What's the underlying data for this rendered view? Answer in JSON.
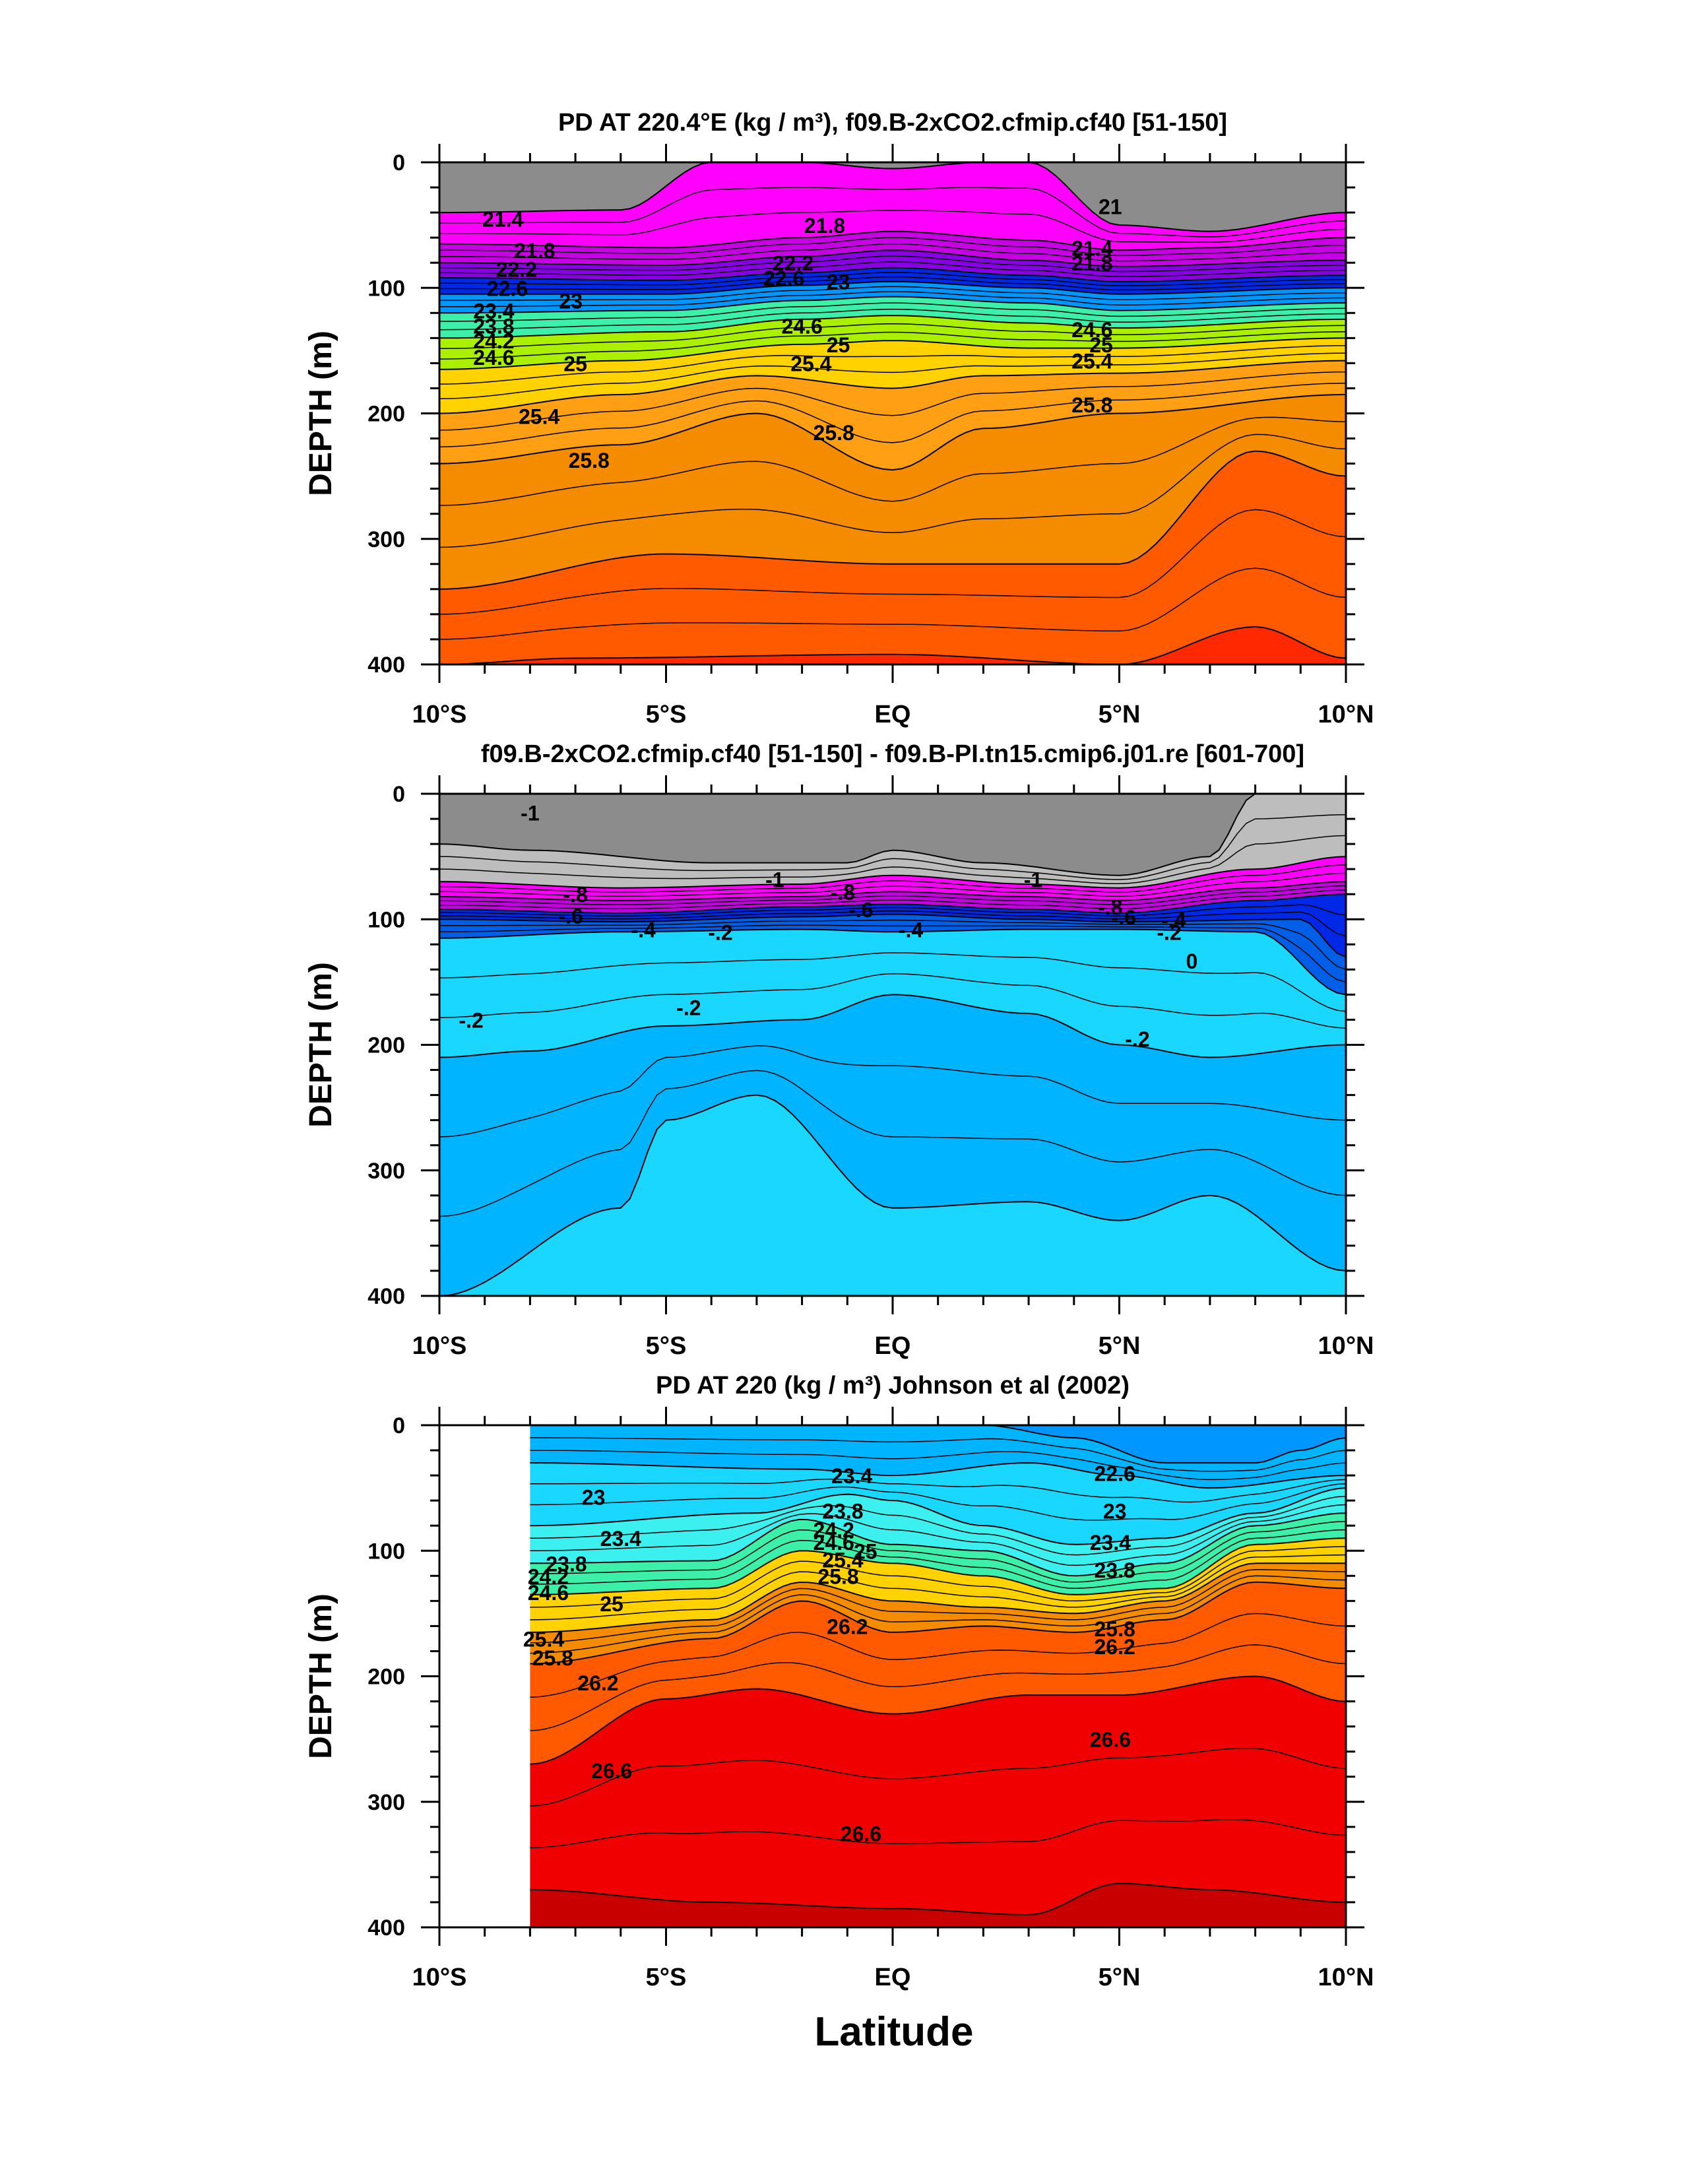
{
  "figure": {
    "xlabel": "Latitude"
  },
  "colors": {
    "ramp": [
      "#8c8c8c",
      "#bdbdbd",
      "#ff00ff",
      "#c800e6",
      "#8a00e6",
      "#2b00e6",
      "#0028e6",
      "#005fe6",
      "#0096ff",
      "#00b4ff",
      "#19d7ff",
      "#3cf0f0",
      "#3cf0aa",
      "#22e664",
      "#50f028",
      "#aaf000",
      "#f0f000",
      "#ffd200",
      "#ffa014",
      "#f58c00",
      "#ff5a00",
      "#ff2800",
      "#f00000",
      "#c80000",
      "#a00000"
    ]
  },
  "chart_data": [
    {
      "type": "contour",
      "title": "PD AT 220.4°E (kg / m³), f09.B-2xCO2.cfmip.cf40 [51-150]",
      "ylabel": "DEPTH (m)",
      "xlim": [
        -10,
        10
      ],
      "ylim": [
        400,
        0
      ],
      "xticks": [
        -10,
        -5,
        0,
        5,
        10
      ],
      "xticklabels": [
        "10°S",
        "5°S",
        "EQ",
        "5°N",
        "10°N"
      ],
      "yticks": [
        0,
        100,
        200,
        300,
        400
      ],
      "yticklabels": [
        "0",
        "100",
        "200",
        "300",
        "400"
      ],
      "levels": [
        21,
        21.4,
        21.8,
        22.2,
        22.6,
        23,
        23.4,
        23.8,
        24.2,
        24.6,
        25,
        25.4,
        25.8,
        26.2,
        26.6,
        27
      ],
      "contour_labels": [
        {
          "text": "21.4",
          "x": -8.6,
          "y": 45
        },
        {
          "text": "21.8",
          "x": -7.9,
          "y": 70
        },
        {
          "text": "22.2",
          "x": -8.3,
          "y": 85
        },
        {
          "text": "22.6",
          "x": -8.5,
          "y": 100
        },
        {
          "text": "23",
          "x": -7.1,
          "y": 110
        },
        {
          "text": "23.4",
          "x": -8.8,
          "y": 118
        },
        {
          "text": "23.8",
          "x": -8.8,
          "y": 130
        },
        {
          "text": "24.2",
          "x": -8.8,
          "y": 142
        },
        {
          "text": "24.6",
          "x": -8.8,
          "y": 155
        },
        {
          "text": "25",
          "x": -7.0,
          "y": 160
        },
        {
          "text": "25.4",
          "x": -7.8,
          "y": 202
        },
        {
          "text": "25.8",
          "x": -6.7,
          "y": 237
        },
        {
          "text": "21.8",
          "x": -1.5,
          "y": 50
        },
        {
          "text": "22.2",
          "x": -2.2,
          "y": 80
        },
        {
          "text": "22.6",
          "x": -2.4,
          "y": 92
        },
        {
          "text": "23",
          "x": -1.2,
          "y": 95
        },
        {
          "text": "24.6",
          "x": -2.0,
          "y": 130
        },
        {
          "text": "25",
          "x": -1.2,
          "y": 145
        },
        {
          "text": "25.4",
          "x": -1.8,
          "y": 160
        },
        {
          "text": "25.8",
          "x": -1.3,
          "y": 215
        },
        {
          "text": "21",
          "x": 4.8,
          "y": 35
        },
        {
          "text": "21.4",
          "x": 4.4,
          "y": 68
        },
        {
          "text": "21.8",
          "x": 4.4,
          "y": 80
        },
        {
          "text": "24.6",
          "x": 4.4,
          "y": 133
        },
        {
          "text": "25",
          "x": 4.6,
          "y": 145
        },
        {
          "text": "25.4",
          "x": 4.4,
          "y": 158
        },
        {
          "text": "25.8",
          "x": 4.4,
          "y": 193
        }
      ]
    },
    {
      "type": "contour",
      "title": "f09.B-2xCO2.cfmip.cf40 [51-150] - f09.B-PI.tn15.cmip6.j01.re [601-700]",
      "ylabel": "DEPTH (m)",
      "xlim": [
        -10,
        10
      ],
      "ylim": [
        400,
        0
      ],
      "xticks": [
        -10,
        -5,
        0,
        5,
        10
      ],
      "xticklabels": [
        "10°S",
        "5°S",
        "EQ",
        "5°N",
        "10°N"
      ],
      "yticks": [
        0,
        100,
        200,
        300,
        400
      ],
      "yticklabels": [
        "0",
        "100",
        "200",
        "300",
        "400"
      ],
      "levels": [
        -1.2,
        -1,
        -0.9,
        -0.8,
        -0.7,
        -0.6,
        -0.5,
        -0.4,
        -0.3,
        -0.2,
        -0.1,
        0,
        0.1
      ],
      "contour_labels": [
        {
          "text": "-1",
          "x": -8.0,
          "y": 15
        },
        {
          "text": "-.8",
          "x": -7.0,
          "y": 80
        },
        {
          "text": "-.6",
          "x": -7.1,
          "y": 97
        },
        {
          "text": "-.4",
          "x": -5.5,
          "y": 108
        },
        {
          "text": "-.2",
          "x": -3.8,
          "y": 110
        },
        {
          "text": "-.2",
          "x": -9.3,
          "y": 180
        },
        {
          "text": "-.2",
          "x": -4.5,
          "y": 170
        },
        {
          "text": "-1",
          "x": -2.6,
          "y": 68
        },
        {
          "text": "-.8",
          "x": -1.1,
          "y": 78
        },
        {
          "text": "-.6",
          "x": -0.7,
          "y": 92
        },
        {
          "text": "-.4",
          "x": 0.4,
          "y": 108
        },
        {
          "text": "-1",
          "x": 3.1,
          "y": 68
        },
        {
          "text": "-.8",
          "x": 4.8,
          "y": 90
        },
        {
          "text": "-.6",
          "x": 5.1,
          "y": 98
        },
        {
          "text": "-.4",
          "x": 6.2,
          "y": 100
        },
        {
          "text": "-.2",
          "x": 6.1,
          "y": 110
        },
        {
          "text": "0",
          "x": 6.6,
          "y": 133
        },
        {
          "text": "-.2",
          "x": 5.4,
          "y": 195
        }
      ]
    },
    {
      "type": "contour",
      "title": "PD AT 220 (kg / m³) Johnson et al (2002)",
      "ylabel": "DEPTH (m)",
      "xlim": [
        -10,
        10
      ],
      "ylim": [
        400,
        0
      ],
      "xticks": [
        -10,
        -5,
        0,
        5,
        10
      ],
      "xticklabels": [
        "10°S",
        "5°S",
        "EQ",
        "5°N",
        "10°N"
      ],
      "yticks": [
        0,
        100,
        200,
        300,
        400
      ],
      "yticklabels": [
        "0",
        "100",
        "200",
        "300",
        "400"
      ],
      "levels": [
        21.8,
        22.2,
        22.6,
        23,
        23.4,
        23.8,
        24.2,
        24.6,
        25,
        25.4,
        25.8,
        26.2,
        26.6,
        27
      ],
      "contour_labels": [
        {
          "text": "23",
          "x": -6.6,
          "y": 57
        },
        {
          "text": "23.4",
          "x": -6.0,
          "y": 90
        },
        {
          "text": "23.8",
          "x": -7.2,
          "y": 110
        },
        {
          "text": "24.2",
          "x": -7.6,
          "y": 120
        },
        {
          "text": "24.6",
          "x": -7.6,
          "y": 133
        },
        {
          "text": "25",
          "x": -6.2,
          "y": 142
        },
        {
          "text": "25.4",
          "x": -7.7,
          "y": 170
        },
        {
          "text": "25.8",
          "x": -7.5,
          "y": 185
        },
        {
          "text": "26.2",
          "x": -6.5,
          "y": 205
        },
        {
          "text": "26.6",
          "x": -6.2,
          "y": 275
        },
        {
          "text": "23.4",
          "x": -0.9,
          "y": 40
        },
        {
          "text": "23.8",
          "x": -1.1,
          "y": 68
        },
        {
          "text": "24.2",
          "x": -1.3,
          "y": 83
        },
        {
          "text": "24.6",
          "x": -1.3,
          "y": 93
        },
        {
          "text": "25",
          "x": -0.6,
          "y": 100
        },
        {
          "text": "25.4",
          "x": -1.1,
          "y": 107
        },
        {
          "text": "25.8",
          "x": -1.2,
          "y": 120
        },
        {
          "text": "26.2",
          "x": -1.0,
          "y": 160
        },
        {
          "text": "26.6",
          "x": -0.7,
          "y": 325
        },
        {
          "text": "22.6",
          "x": 4.9,
          "y": 38
        },
        {
          "text": "23",
          "x": 4.9,
          "y": 68
        },
        {
          "text": "23.4",
          "x": 4.8,
          "y": 93
        },
        {
          "text": "23.8",
          "x": 4.9,
          "y": 115
        },
        {
          "text": "25.8",
          "x": 4.9,
          "y": 162
        },
        {
          "text": "26.2",
          "x": 4.9,
          "y": 176
        },
        {
          "text": "26.6",
          "x": 4.8,
          "y": 250
        }
      ]
    }
  ]
}
